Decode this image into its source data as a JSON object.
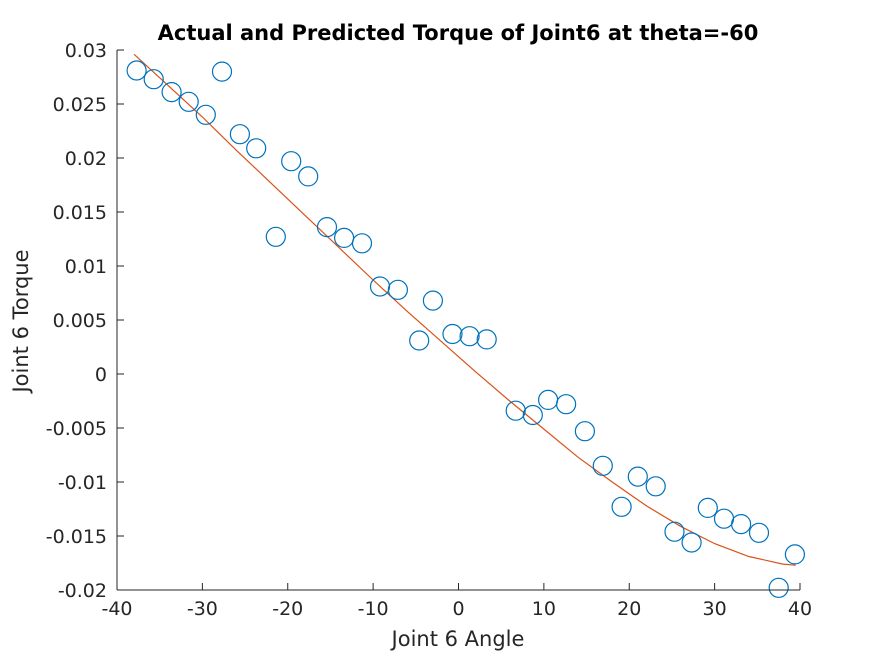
{
  "chart_data": {
    "type": "scatter",
    "title": "Actual and Predicted Torque of Joint6 at theta=-60",
    "xlabel": "Joint 6 Angle",
    "ylabel": "Joint 6 Torque",
    "xlim": [
      -40,
      40
    ],
    "ylim": [
      -0.02,
      0.03
    ],
    "xticks": [
      -40,
      -30,
      -20,
      -10,
      0,
      10,
      20,
      30,
      40
    ],
    "xtick_labels": [
      "-40",
      "-30",
      "-20",
      "-10",
      "0",
      "10",
      "20",
      "30",
      "40"
    ],
    "yticks": [
      -0.02,
      -0.015,
      -0.01,
      -0.005,
      0,
      0.005,
      0.01,
      0.015,
      0.02,
      0.025,
      0.03
    ],
    "ytick_labels": [
      "-0.02",
      "-0.015",
      "-0.01",
      "-0.005",
      "0",
      "0.005",
      "0.01",
      "0.015",
      "0.02",
      "0.025",
      "0.03"
    ],
    "grid": false,
    "series": [
      {
        "kind": "scatter",
        "marker": "circle",
        "color": "#0072BD",
        "x": [
          -37.7,
          -35.7,
          -33.6,
          -31.6,
          -29.6,
          -27.7,
          -25.6,
          -23.7,
          -21.4,
          -19.6,
          -17.6,
          -15.4,
          -13.4,
          -11.3,
          -9.2,
          -7.1,
          -4.6,
          -3.0,
          -0.7,
          1.3,
          3.3,
          6.7,
          8.7,
          10.5,
          12.6,
          14.8,
          16.9,
          19.1,
          21.0,
          23.1,
          25.3,
          27.3,
          29.2,
          31.1,
          33.1,
          35.2,
          37.5,
          39.4
        ],
        "y": [
          0.0281,
          0.0273,
          0.0261,
          0.0252,
          0.024,
          0.028,
          0.0222,
          0.0209,
          0.0127,
          0.0197,
          0.0183,
          0.0136,
          0.0126,
          0.0121,
          0.0081,
          0.0078,
          0.0031,
          0.0068,
          0.0037,
          0.0035,
          0.0032,
          -0.0034,
          -0.0038,
          -0.0024,
          -0.0028,
          -0.0053,
          -0.0085,
          -0.0123,
          -0.0095,
          -0.0104,
          -0.0146,
          -0.0156,
          -0.0124,
          -0.0134,
          -0.0139,
          -0.0147,
          -0.0198,
          -0.0167
        ]
      },
      {
        "kind": "line",
        "color": "#D95319",
        "x": [
          -38,
          -34,
          -30,
          -26,
          -22,
          -18,
          -14,
          -10,
          -6,
          -2,
          0,
          2,
          6,
          10,
          14,
          18,
          22,
          26,
          30,
          34,
          38,
          39.5
        ],
        "y": [
          0.0296,
          0.0267,
          0.0238,
          0.0207,
          0.0177,
          0.0147,
          0.0117,
          0.0087,
          0.0058,
          0.003,
          0.0016,
          0.0002,
          -0.0025,
          -0.0051,
          -0.0077,
          -0.01,
          -0.0122,
          -0.0141,
          -0.0157,
          -0.0169,
          -0.0176,
          -0.0177
        ]
      }
    ]
  }
}
